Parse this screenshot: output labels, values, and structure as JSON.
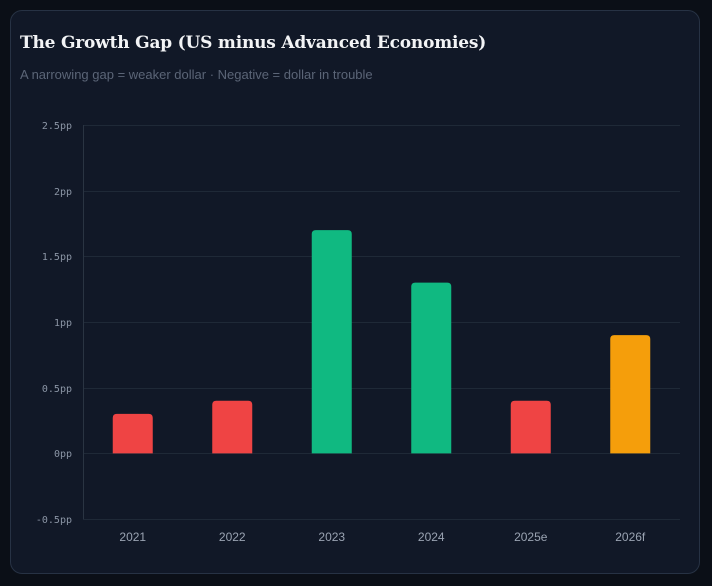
{
  "header": {
    "title": "The Growth Gap (US minus Advanced Economies)",
    "subtitle": "A narrowing gap = weaker dollar · Negative = dollar in trouble"
  },
  "colors": {
    "red": "#ef4444",
    "green": "#10b981",
    "orange": "#f59e0b",
    "grid": "#1f2937",
    "axis": "#2a3442"
  },
  "chart_data": {
    "type": "bar",
    "title": "The Growth Gap (US minus Advanced Economies)",
    "subtitle": "A narrowing gap = weaker dollar · Negative = dollar in trouble",
    "xlabel": "",
    "ylabel": "",
    "categories": [
      "2021",
      "2022",
      "2023",
      "2024",
      "2025e",
      "2026f"
    ],
    "values": [
      0.3,
      0.4,
      1.7,
      1.3,
      0.4,
      0.9
    ],
    "bar_colors": [
      "red",
      "red",
      "green",
      "green",
      "red",
      "orange"
    ],
    "ylim": [
      -0.5,
      2.5
    ],
    "yticks": [
      2.5,
      2,
      1.5,
      1,
      0.5,
      0,
      -0.5
    ],
    "ytick_labels": [
      "2.5pp",
      "2pp",
      "1.5pp",
      "1pp",
      "0.5pp",
      "0pp",
      "-0.5pp"
    ],
    "grid": true,
    "legend": "none"
  }
}
